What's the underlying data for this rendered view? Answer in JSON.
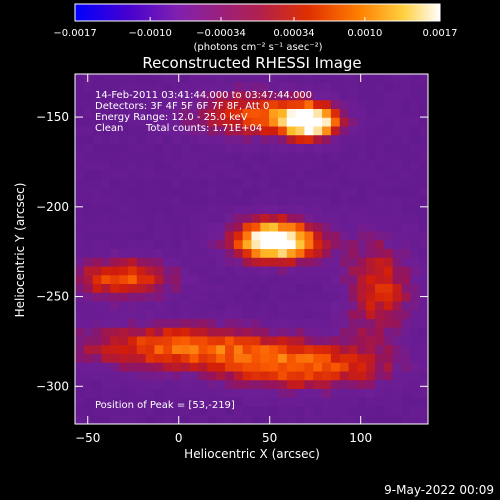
{
  "chart_data": {
    "type": "heatmap",
    "title": "Reconstructed RHESSI Image",
    "xlabel": "Heliocentric X (arcsec)",
    "ylabel": "Heliocentric Y (arcsec)",
    "xlim": [
      -57,
      137
    ],
    "ylim": [
      -321,
      -126
    ],
    "x_ticks": [
      -50,
      0,
      50,
      100
    ],
    "y_ticks": [
      -150,
      -200,
      -250,
      -300
    ],
    "x_tick_labels": [
      "−50",
      "0",
      "50",
      "100"
    ],
    "y_tick_labels": [
      "−150",
      "−200",
      "−250",
      "−300"
    ],
    "colorbar": {
      "range": [
        -0.0017,
        0.0017
      ],
      "tick_values": [
        -0.0017,
        -0.001,
        -0.00034,
        0.00034,
        0.001,
        0.0017
      ],
      "tick_labels": [
        "−0.0017",
        "−0.0010",
        "−0.00034",
        "0.00034",
        "0.0010",
        "0.0017"
      ],
      "unit_label": "(photons cm⁻² s⁻¹ asec⁻²)",
      "colors": [
        "#0000ff",
        "#4400d0",
        "#8020b0",
        "#b02050",
        "#e03000",
        "#ff8000",
        "#ffd040",
        "#ffffff"
      ]
    },
    "annotations": {
      "time_range": "14-Feb-2011 03:41:44.000 to 03:47:44.000",
      "detectors": "Detectors: 3F 4F 5F 6F 7F 8F, Att 0",
      "energy": "Energy Range: 12.0 - 25.0 keV",
      "method": "Clean",
      "total_counts": "Total counts: 1.71E+04",
      "peak": "Position of Peak = [53,-219]"
    },
    "sources": [
      {
        "x": 53,
        "y": -219,
        "sx": 18,
        "sy": 9,
        "amp": 1.0
      },
      {
        "x": 72,
        "y": -153,
        "sx": 12,
        "sy": 7,
        "amp": 0.85
      },
      {
        "x": 40,
        "y": -148,
        "sx": 28,
        "sy": 10,
        "amp": 0.5
      },
      {
        "x": -30,
        "y": -240,
        "sx": 22,
        "sy": 9,
        "amp": 0.55
      },
      {
        "x": 0,
        "y": -278,
        "sx": 45,
        "sy": 10,
        "amp": 0.55
      },
      {
        "x": 70,
        "y": -290,
        "sx": 35,
        "sy": 10,
        "amp": 0.5
      },
      {
        "x": 110,
        "y": -245,
        "sx": 15,
        "sy": 22,
        "amp": 0.45
      }
    ]
  },
  "footer": {
    "date": "9-May-2022 00:09"
  }
}
